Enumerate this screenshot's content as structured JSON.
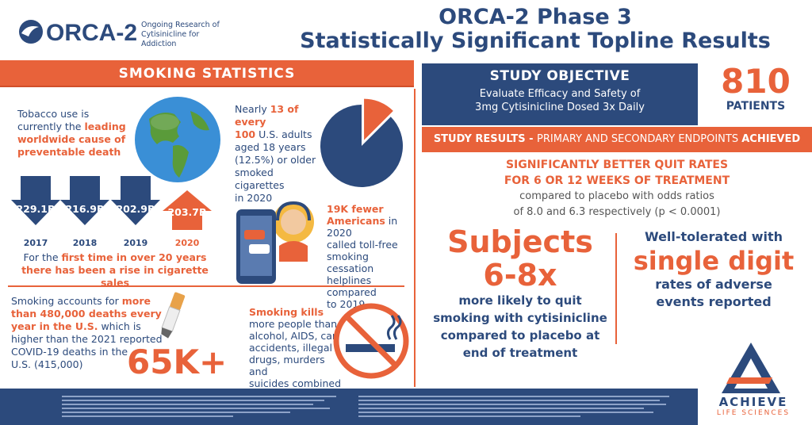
{
  "header": {
    "logo_text": "ORCA-2",
    "logo_tagline_1": "Ongoing Research of",
    "logo_tagline_2": "Cytisinicline for Addiction",
    "title_line1": "ORCA-2 Phase 3",
    "title_line2": "Statistically Significant Topline Results"
  },
  "smoking": {
    "band_title": "SMOKING STATISTICS",
    "tobacco_1": "Tobacco use is",
    "tobacco_2_plain": "currently the ",
    "tobacco_2_hl": "leading",
    "tobacco_3_hl": "worldwide cause of",
    "tobacco_4_hl": "preventable death",
    "sales": [
      {
        "value": "229.1B",
        "year": "2017"
      },
      {
        "value": "216.9B",
        "year": "2018"
      },
      {
        "value": "202.9B",
        "year": "2019"
      },
      {
        "value": "203.7B",
        "year": "2020"
      }
    ],
    "sales_caption_1a": "For the ",
    "sales_caption_1b": "first time in over 20 years",
    "sales_caption_2": "there has been a rise in cigarette sales",
    "adults_1a": "Nearly ",
    "adults_1b": "13 of every",
    "adults_2a": "100",
    "adults_2b": " U.S. adults",
    "adults_3": "aged 18 years",
    "adults_4": "(12.5%) or older",
    "adults_5": "smoked cigarettes",
    "adults_6": "in 2020",
    "calls_1": "19K fewer",
    "calls_2a": "Americans",
    "calls_2b": " in 2020",
    "calls_3": "called toll-free",
    "calls_4": "smoking cessation",
    "calls_5": "helplines compared",
    "calls_6": "to 2019",
    "deaths_1a": "Smoking accounts for ",
    "deaths_1b": "more",
    "deaths_2": "than 480,000 deaths every",
    "deaths_3a": "year in the U.S.",
    "deaths_3b": " which is",
    "deaths_4": "higher than the 2021 reported",
    "deaths_5": "COVID-19 deaths in the",
    "deaths_6": "U.S. (415,000)",
    "big_number": "65K+",
    "kills_1": "Smoking kills",
    "kills_2": "more people than",
    "kills_3": "alcohol, AIDS, car",
    "kills_4": "accidents, illegal",
    "kills_5": "drugs, murders and",
    "kills_6": "suicides combined"
  },
  "objective": {
    "heading": "STUDY OBJECTIVE",
    "line1": "Evaluate Efficacy and Safety of",
    "line2": "3mg Cytisinicline Dosed 3x Daily"
  },
  "patients": {
    "count": "810",
    "label": "PATIENTS"
  },
  "results": {
    "band_a": "STUDY RESULTS - ",
    "band_b": "PRIMARY AND SECONDARY ENDPOINTS ",
    "band_c": "ACHIEVED",
    "quit_1": "SIGNIFICANTLY BETTER QUIT RATES",
    "quit_2": "FOR 6 OR 12 WEEKS OF TREATMENT",
    "quit_3": "compared to placebo with odds ratios",
    "quit_4": "of 8.0 and 6.3 respectively (p < 0.0001)",
    "subjects_1": "Subjects",
    "subjects_2": "6-8x",
    "subjects_3": "more likely to quit",
    "subjects_4": "smoking with cytisinicline",
    "subjects_5": "compared to placebo at",
    "subjects_6": "end of treatment",
    "tol_1": "Well-tolerated with",
    "tol_2": "single digit",
    "tol_3": "rates of adverse",
    "tol_4": "events reported"
  },
  "company": {
    "name": "ACHIEVE",
    "sub": "LIFE SCIENCES"
  },
  "colors": {
    "navy": "#2c4a7c",
    "orange": "#e8623a"
  },
  "pie_percent": 12.5
}
